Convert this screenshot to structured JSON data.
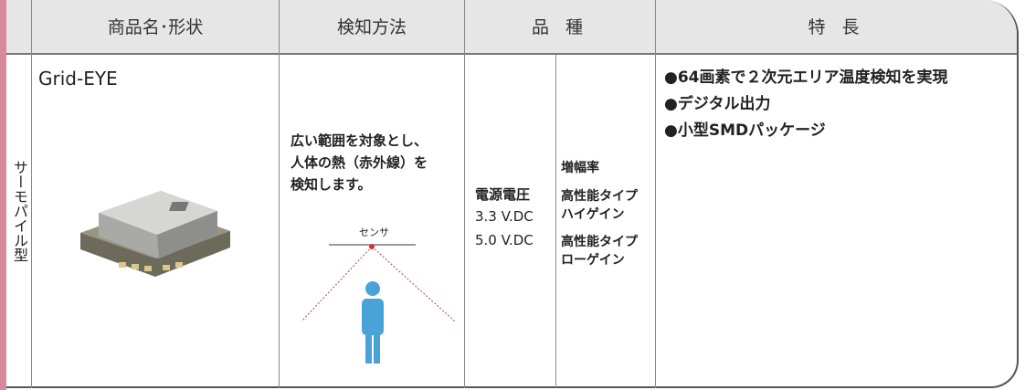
{
  "header": {
    "columns": [
      "商品名･形状",
      "検知方法",
      "品 種",
      "特 長"
    ]
  },
  "row": {
    "category": "サーモパイル型",
    "product": {
      "name": "Grid-EYE"
    },
    "detection": {
      "lines": [
        "広い範囲を対象とし、",
        "人体の熱（赤外線）を",
        "検知します。"
      ],
      "sensor_label": "センサ"
    },
    "variety": {
      "power": {
        "label": "電源電圧",
        "values": [
          "3.3 V.DC",
          "5.0 V.DC"
        ]
      },
      "gain": {
        "label": "増幅率",
        "types": [
          "高性能タイプ",
          "ハイゲイン",
          "高性能タイプ",
          "ローゲイン"
        ]
      }
    },
    "features": [
      "●64画素で２次元エリア温度検知を実現",
      "●デジタル出力",
      "●小型SMDパッケージ"
    ]
  }
}
